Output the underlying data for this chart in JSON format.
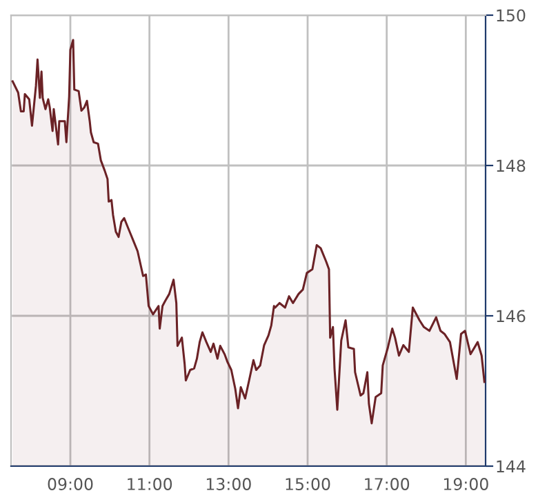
{
  "chart_data": {
    "type": "area",
    "line_style": "solid",
    "marker": "none",
    "grid": true,
    "x": [
      7.54,
      7.68,
      7.75,
      7.82,
      7.85,
      7.96,
      8.03,
      8.13,
      8.17,
      8.23,
      8.27,
      8.3,
      8.37,
      8.44,
      8.48,
      8.55,
      8.58,
      8.69,
      8.72,
      8.86,
      8.9,
      8.97,
      9.0,
      9.07,
      9.1,
      9.21,
      9.28,
      9.35,
      9.42,
      9.49,
      9.52,
      9.59,
      9.7,
      9.77,
      9.87,
      9.94,
      9.97,
      10.04,
      10.08,
      10.15,
      10.22,
      10.29,
      10.36,
      10.46,
      10.53,
      10.6,
      10.7,
      10.84,
      10.91,
      10.98,
      11.09,
      11.23,
      11.26,
      11.33,
      11.4,
      11.5,
      11.61,
      11.68,
      11.71,
      11.82,
      11.89,
      11.92,
      12.03,
      12.13,
      12.2,
      12.27,
      12.34,
      12.44,
      12.55,
      12.62,
      12.72,
      12.79,
      12.9,
      12.97,
      13.07,
      13.17,
      13.24,
      13.31,
      13.42,
      13.52,
      13.63,
      13.7,
      13.8,
      13.9,
      14.01,
      14.08,
      14.15,
      14.18,
      14.29,
      14.43,
      14.53,
      14.63,
      14.77,
      14.88,
      14.98,
      15.12,
      15.23,
      15.33,
      15.47,
      15.54,
      15.57,
      15.64,
      15.68,
      15.75,
      15.85,
      15.96,
      16.03,
      16.17,
      16.2,
      16.34,
      16.41,
      16.51,
      16.55,
      16.62,
      16.72,
      16.86,
      16.9,
      17.03,
      17.14,
      17.21,
      17.31,
      17.42,
      17.56,
      17.66,
      17.83,
      17.94,
      18.08,
      18.25,
      18.36,
      18.46,
      18.6,
      18.77,
      18.88,
      18.98,
      19.12,
      19.3,
      19.4,
      19.47
    ],
    "series": [
      {
        "color": "#6b2226",
        "values": [
          149.12,
          148.97,
          148.72,
          148.72,
          148.95,
          148.88,
          148.53,
          149.06,
          149.41,
          148.9,
          149.25,
          148.9,
          148.75,
          148.88,
          148.77,
          148.46,
          148.75,
          148.28,
          148.59,
          148.59,
          148.31,
          148.92,
          149.54,
          149.67,
          149.01,
          148.99,
          148.73,
          148.77,
          148.86,
          148.59,
          148.44,
          148.31,
          148.29,
          148.07,
          147.93,
          147.82,
          147.52,
          147.54,
          147.34,
          147.12,
          147.05,
          147.25,
          147.3,
          147.17,
          147.08,
          146.99,
          146.86,
          146.53,
          146.55,
          146.13,
          146.02,
          146.13,
          145.83,
          146.13,
          146.2,
          146.29,
          146.48,
          146.17,
          145.6,
          145.71,
          145.36,
          145.14,
          145.28,
          145.3,
          145.43,
          145.65,
          145.78,
          145.65,
          145.52,
          145.63,
          145.43,
          145.6,
          145.49,
          145.39,
          145.28,
          145.03,
          144.77,
          145.05,
          144.9,
          145.14,
          145.41,
          145.28,
          145.34,
          145.61,
          145.74,
          145.87,
          146.13,
          146.11,
          146.17,
          146.11,
          146.26,
          146.17,
          146.29,
          146.35,
          146.57,
          146.62,
          146.94,
          146.9,
          146.72,
          146.62,
          145.71,
          145.85,
          145.3,
          144.75,
          145.67,
          145.94,
          145.58,
          145.56,
          145.25,
          144.94,
          144.97,
          145.25,
          144.83,
          144.57,
          144.92,
          144.97,
          145.34,
          145.58,
          145.83,
          145.71,
          145.47,
          145.61,
          145.52,
          146.11,
          145.94,
          145.85,
          145.8,
          145.98,
          145.8,
          145.76,
          145.65,
          145.16,
          145.76,
          145.8,
          145.49,
          145.65,
          145.47,
          145.12
        ]
      }
    ],
    "xlim": [
      7.5,
      19.5
    ],
    "ylim": [
      144,
      150
    ],
    "xticks": [
      {
        "value": 9,
        "label": "09:00"
      },
      {
        "value": 11,
        "label": "11:00"
      },
      {
        "value": 13,
        "label": "13:00"
      },
      {
        "value": 15,
        "label": "15:00"
      },
      {
        "value": 17,
        "label": "17:00"
      },
      {
        "value": 19,
        "label": "19:00"
      }
    ],
    "yticks": [
      144,
      146,
      148,
      150
    ]
  }
}
